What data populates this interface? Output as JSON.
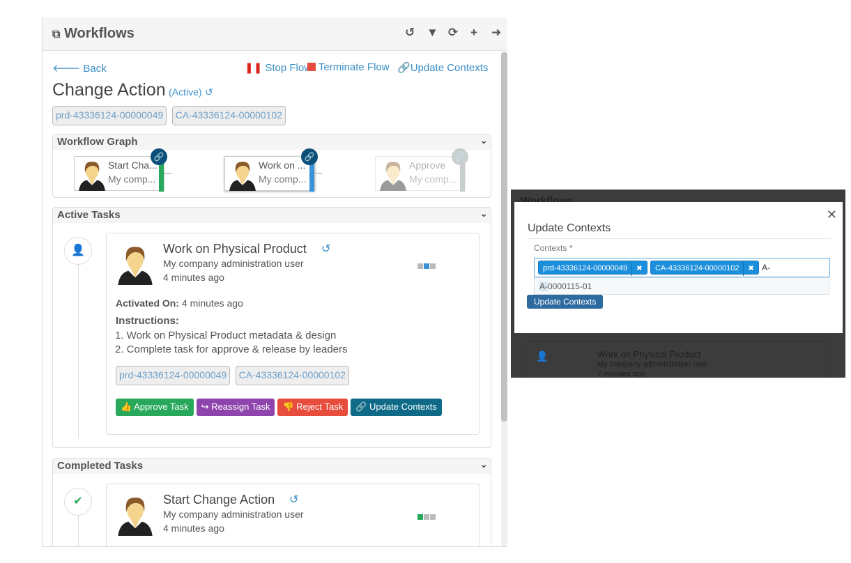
{
  "header": {
    "title": "Workflows",
    "tools": [
      "undo-icon",
      "filter-icon",
      "refresh-icon",
      "plus-icon",
      "arrow-right-icon"
    ]
  },
  "actions": {
    "back": "Back",
    "stop": "Stop Flow",
    "terminate": "Terminate Flow",
    "update": "Update Contexts"
  },
  "page": {
    "title": "Change Action",
    "status": "(Active)",
    "contexts": [
      "prd-43336124-00000049",
      "CA-43336124-00000102"
    ]
  },
  "graph": {
    "title": "Workflow Graph",
    "nodes": [
      {
        "title": "Start Cha...",
        "subtitle": "My comp...",
        "color": "#27a85a",
        "pin": "#0b4f7a"
      },
      {
        "title": "Work on ...",
        "subtitle": "My comp...",
        "color": "#3a93d9",
        "pin": "#0b4f7a"
      },
      {
        "title": "Approve",
        "subtitle": "My comp...",
        "color": "#c0c6c6",
        "pin": "#bfc5c5"
      }
    ]
  },
  "active": {
    "title": "Active Tasks",
    "task": {
      "name": "Work on Physical Product",
      "user": "My company administration user",
      "time": "4 minutes ago",
      "activated_label": "Activated On:",
      "activated_value": "4 minutes ago",
      "instructions_label": "Instructions:",
      "instructions": [
        "1. Work on Physical Product metadata & design",
        "2. Complete task for approve & release by leaders"
      ],
      "contexts": [
        "prd-43336124-00000049",
        "CA-43336124-00000102"
      ],
      "buttons": {
        "approve": "Approve Task",
        "reassign": "Reassign Task",
        "reject": "Reject Task",
        "update": "Update Contexts"
      }
    }
  },
  "completed": {
    "title": "Completed Tasks",
    "task": {
      "name": "Start Change Action",
      "user": "My company administration user",
      "time": "4 minutes ago"
    }
  },
  "modal": {
    "bg_title": "Workflows",
    "title": "Update Contexts",
    "label": "Contexts *",
    "chips": [
      "prd-43336124-00000049",
      "CA-43336124-00000102"
    ],
    "input": "A-",
    "suggestion_match": "A-",
    "suggestion_rest": "0000115-01",
    "submit": "Update Contexts",
    "bg_task": {
      "name": "Work on Physical Product",
      "user": "My company administration user",
      "time": "7 minutes ago"
    }
  },
  "colors": {
    "link": "#3a8fc7",
    "approve": "#27a85a",
    "reassign": "#8e44ad",
    "reject": "#e74c3c",
    "update": "#0e6a86",
    "modal_button": "#2d6a9f"
  }
}
